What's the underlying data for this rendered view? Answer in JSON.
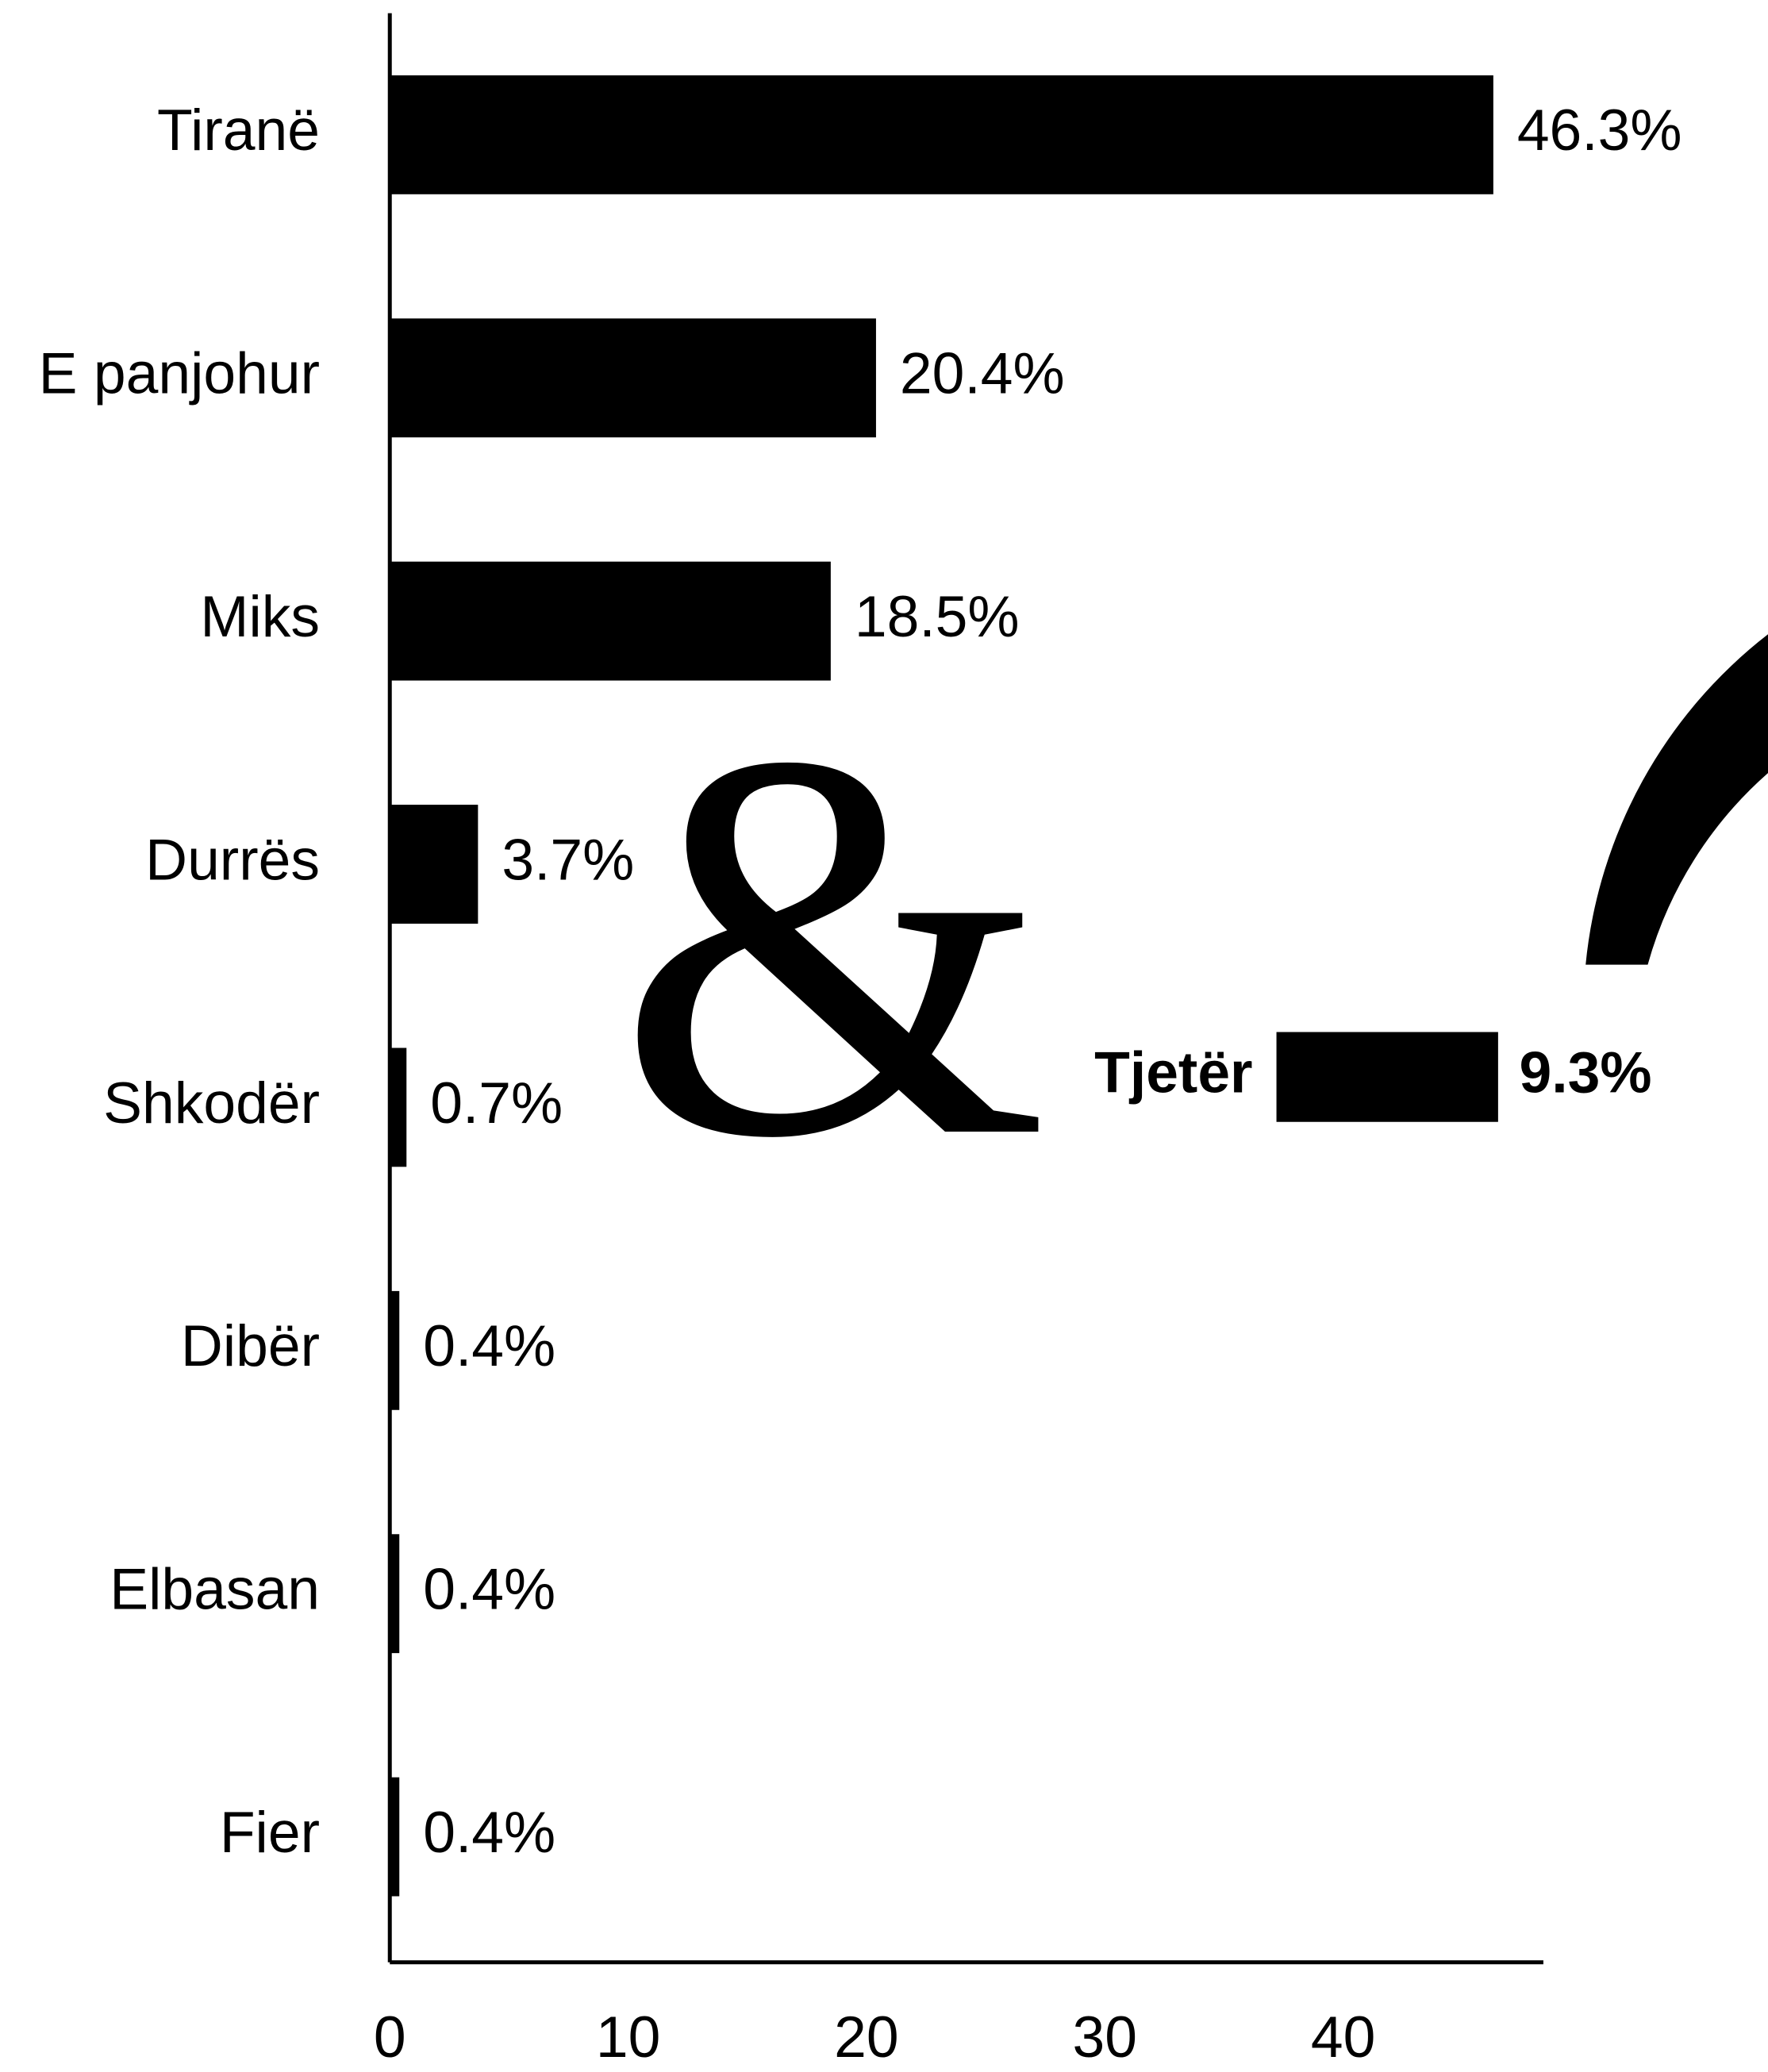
{
  "chart_data": {
    "type": "bar",
    "orientation": "horizontal",
    "categories": [
      "Tiranë",
      "E panjohur",
      "Miks",
      "Durrës",
      "Shkodër",
      "Dibër",
      "Elbasan",
      "Fier"
    ],
    "values": [
      46.3,
      20.4,
      18.5,
      3.7,
      0.7,
      0.4,
      0.4,
      0.4
    ],
    "value_labels": [
      "46.3%",
      "20.4%",
      "18.5%",
      "3.7%",
      "0.7%",
      "0.4%",
      "0.4%",
      "0.4%"
    ],
    "color": "#000000",
    "xlim": [
      0,
      48.4
    ],
    "xticks": [
      0,
      10,
      20,
      30,
      40
    ],
    "highlight": {
      "category": "Tjetër",
      "value": 9.3,
      "value_label": "9.3%"
    }
  }
}
